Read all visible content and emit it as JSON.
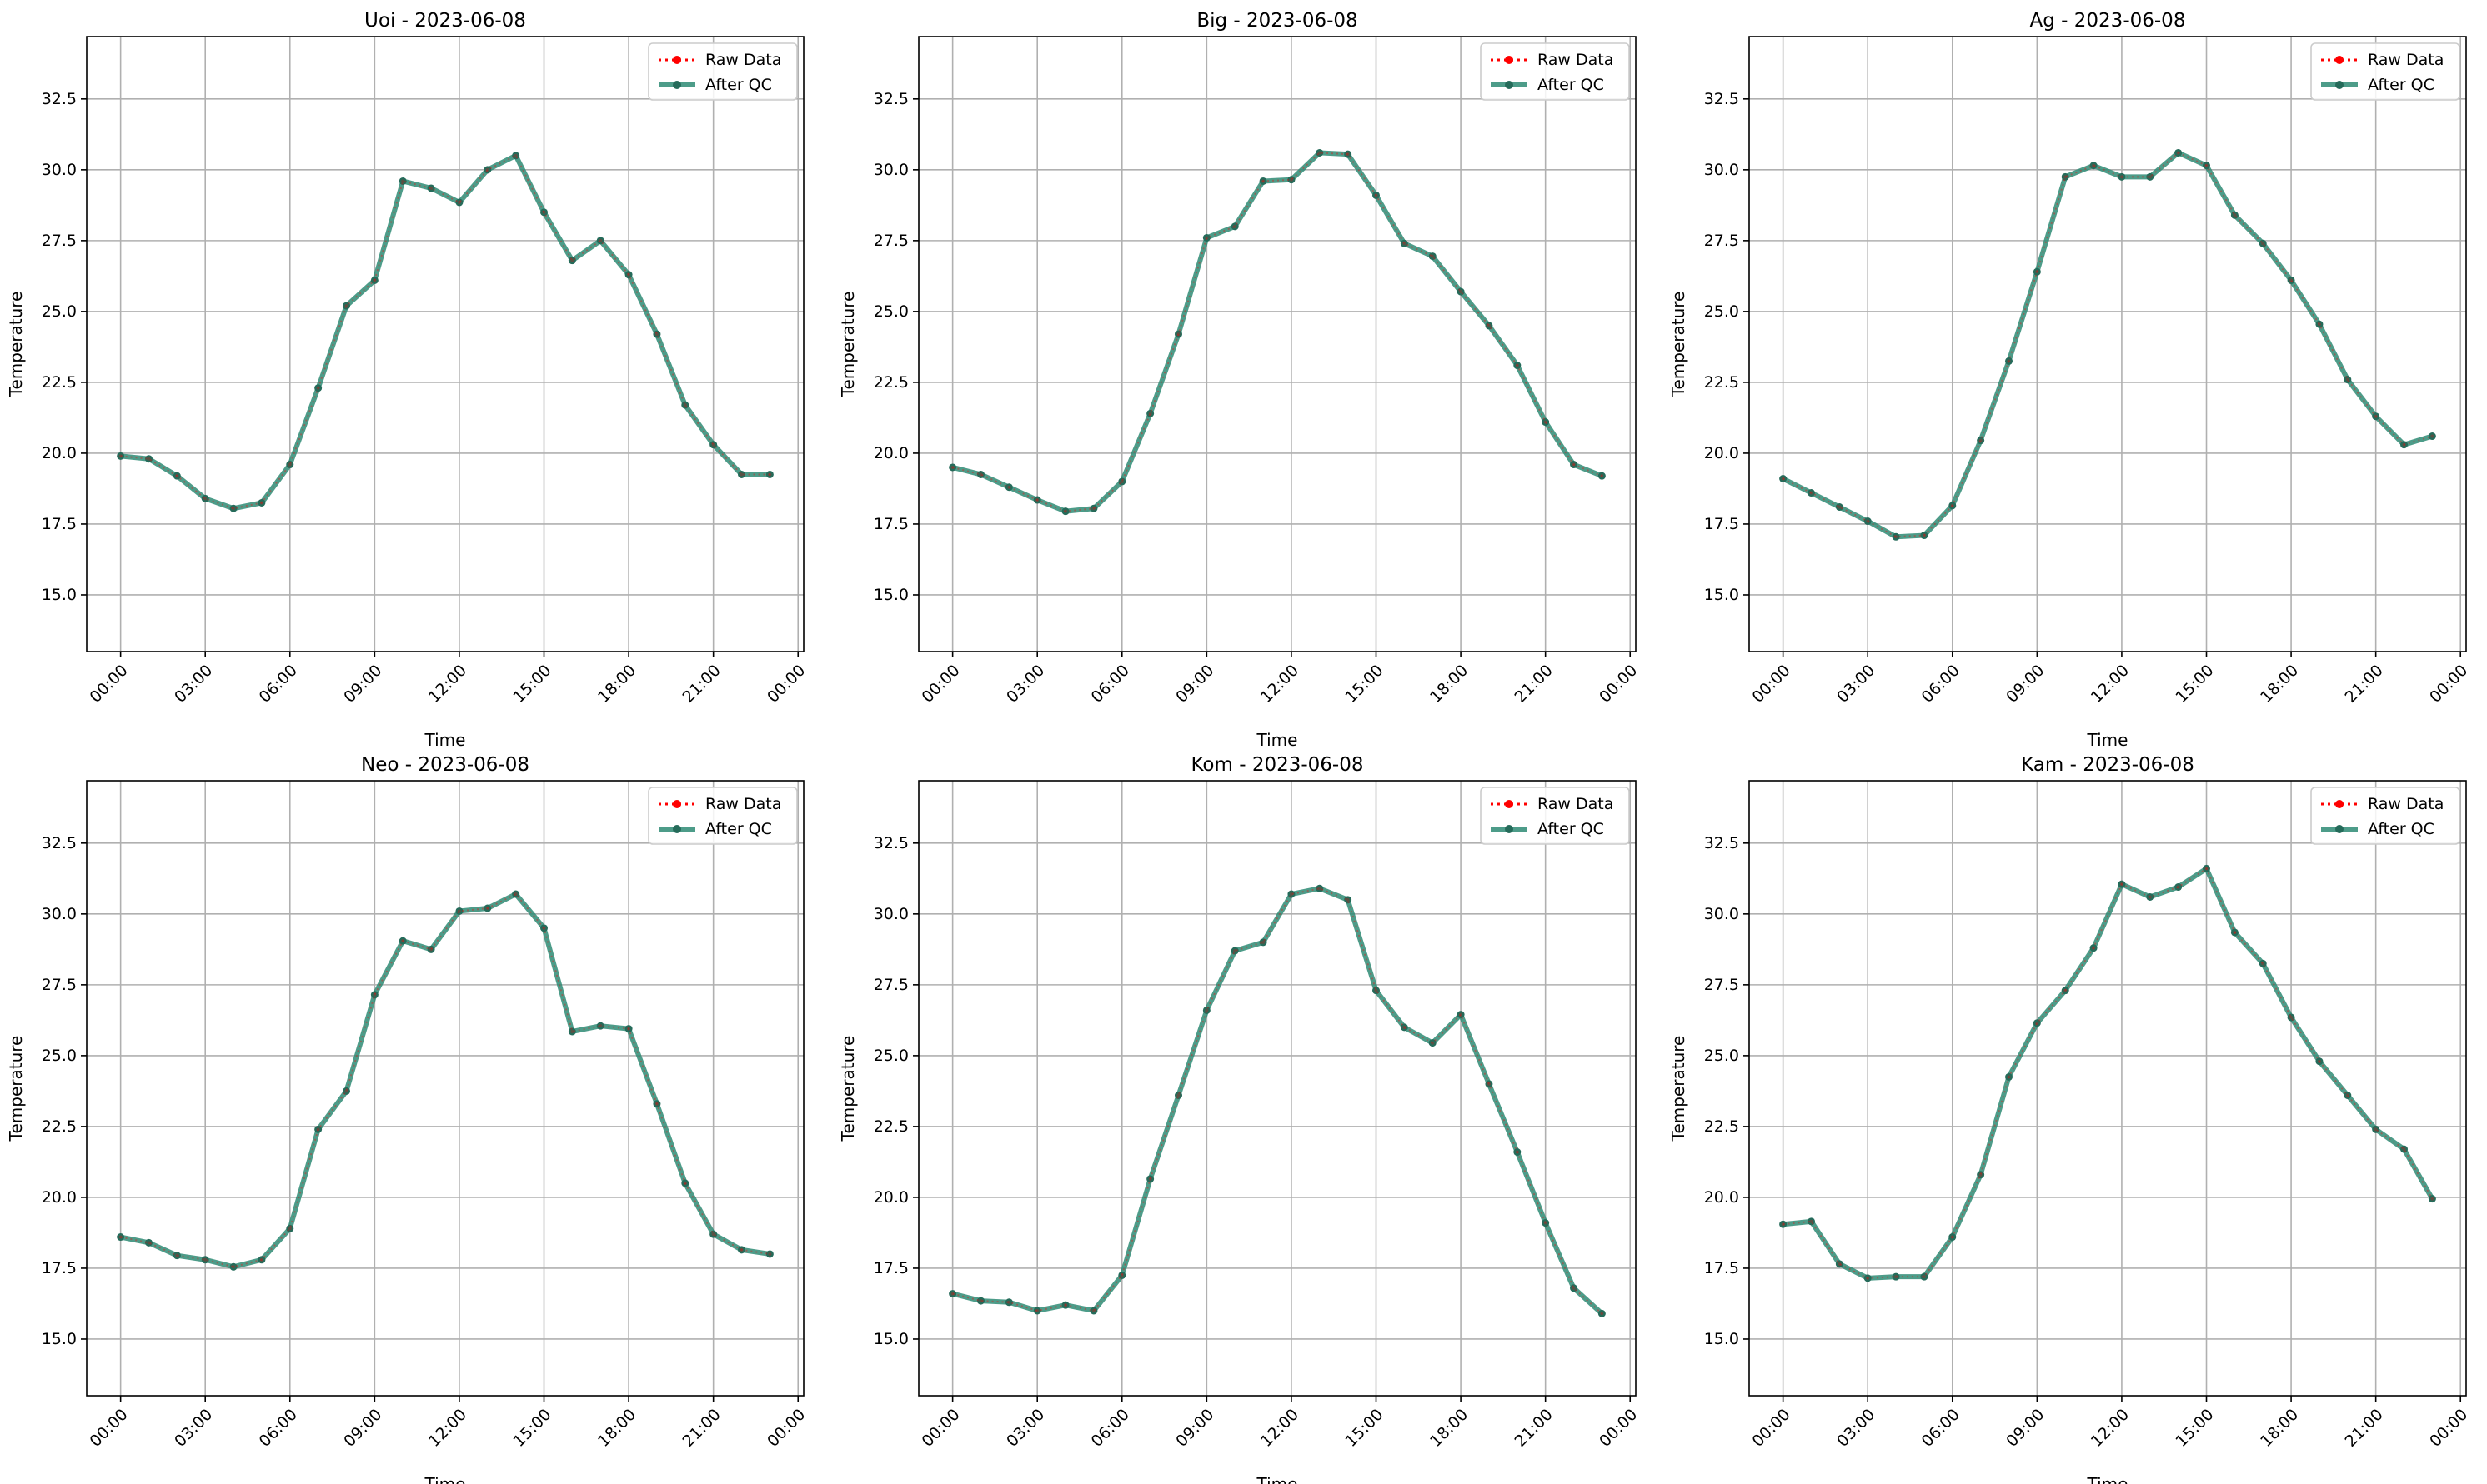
{
  "figure": {
    "date": "2023-06-08"
  },
  "legend": {
    "raw_label": "Raw Data",
    "qc_label": "After QC",
    "placement": "top-right"
  },
  "colors": {
    "raw": "#ff0000",
    "qc": "#2e8b74",
    "qc_marker": "#256b5a",
    "grid": "#b0b0b0"
  },
  "chart_data": [
    {
      "type": "line",
      "title": "Uoi - 2023-06-08",
      "xlabel": "Time",
      "ylabel": "Temperature",
      "xticks": [
        "00:00",
        "03:00",
        "06:00",
        "09:00",
        "12:00",
        "15:00",
        "18:00",
        "21:00",
        "00:00"
      ],
      "yticks": [
        "15.0",
        "17.5",
        "20.0",
        "22.5",
        "25.0",
        "27.5",
        "30.0",
        "32.5"
      ],
      "xlim_hours": [
        -1.2,
        24.2
      ],
      "ylim": [
        13.0,
        34.7
      ],
      "grid": true,
      "x_hours": [
        0,
        1,
        2,
        3,
        4,
        5,
        6,
        7,
        8,
        9,
        10,
        11,
        12,
        13,
        14,
        15,
        16,
        17,
        18,
        19,
        20,
        21,
        22,
        23
      ],
      "series": [
        {
          "name": "Raw Data",
          "values": [
            19.9,
            19.8,
            19.2,
            18.4,
            18.05,
            18.25,
            19.6,
            22.3,
            25.2,
            26.1,
            29.6,
            29.35,
            28.85,
            30.0,
            30.5,
            28.5,
            26.8,
            27.5,
            26.3,
            24.2,
            21.7,
            20.3,
            19.25,
            19.25
          ]
        },
        {
          "name": "After QC",
          "values": [
            19.9,
            19.8,
            19.2,
            18.4,
            18.05,
            18.25,
            19.6,
            22.3,
            25.2,
            26.1,
            29.6,
            29.35,
            28.85,
            30.0,
            30.5,
            28.5,
            26.8,
            27.5,
            26.3,
            24.2,
            21.7,
            20.3,
            19.25,
            19.25
          ]
        }
      ]
    },
    {
      "type": "line",
      "title": "Big - 2023-06-08",
      "xlabel": "Time",
      "ylabel": "Temperature",
      "xticks": [
        "00:00",
        "03:00",
        "06:00",
        "09:00",
        "12:00",
        "15:00",
        "18:00",
        "21:00",
        "00:00"
      ],
      "yticks": [
        "15.0",
        "17.5",
        "20.0",
        "22.5",
        "25.0",
        "27.5",
        "30.0",
        "32.5"
      ],
      "xlim_hours": [
        -1.2,
        24.2
      ],
      "ylim": [
        13.0,
        34.7
      ],
      "grid": true,
      "x_hours": [
        0,
        1,
        2,
        3,
        4,
        5,
        6,
        7,
        8,
        9,
        10,
        11,
        12,
        13,
        14,
        15,
        16,
        17,
        18,
        19,
        20,
        21,
        22,
        23
      ],
      "series": [
        {
          "name": "Raw Data",
          "values": [
            19.5,
            19.25,
            18.8,
            18.35,
            17.95,
            18.05,
            19.0,
            21.4,
            24.2,
            27.6,
            28.0,
            29.6,
            29.65,
            30.6,
            30.55,
            29.1,
            27.4,
            26.95,
            25.7,
            24.5,
            23.1,
            21.1,
            19.6,
            19.2
          ]
        },
        {
          "name": "After QC",
          "values": [
            19.5,
            19.25,
            18.8,
            18.35,
            17.95,
            18.05,
            19.0,
            21.4,
            24.2,
            27.6,
            28.0,
            29.6,
            29.65,
            30.6,
            30.55,
            29.1,
            27.4,
            26.95,
            25.7,
            24.5,
            23.1,
            21.1,
            19.6,
            19.2
          ]
        }
      ]
    },
    {
      "type": "line",
      "title": "Ag - 2023-06-08",
      "xlabel": "Time",
      "ylabel": "Temperature",
      "xticks": [
        "00:00",
        "03:00",
        "06:00",
        "09:00",
        "12:00",
        "15:00",
        "18:00",
        "21:00",
        "00:00"
      ],
      "yticks": [
        "15.0",
        "17.5",
        "20.0",
        "22.5",
        "25.0",
        "27.5",
        "30.0",
        "32.5"
      ],
      "xlim_hours": [
        -1.2,
        24.2
      ],
      "ylim": [
        13.0,
        34.7
      ],
      "grid": true,
      "x_hours": [
        0,
        1,
        2,
        3,
        4,
        5,
        6,
        7,
        8,
        9,
        10,
        11,
        12,
        13,
        14,
        15,
        16,
        17,
        18,
        19,
        20,
        21,
        22,
        23
      ],
      "series": [
        {
          "name": "Raw Data",
          "values": [
            19.1,
            18.6,
            18.1,
            17.6,
            17.05,
            17.1,
            18.15,
            20.45,
            23.25,
            26.4,
            29.75,
            30.15,
            29.75,
            29.75,
            30.6,
            30.15,
            28.4,
            27.4,
            26.1,
            24.55,
            22.6,
            21.3,
            20.3,
            20.6
          ]
        },
        {
          "name": "After QC",
          "values": [
            19.1,
            18.6,
            18.1,
            17.6,
            17.05,
            17.1,
            18.15,
            20.45,
            23.25,
            26.4,
            29.75,
            30.15,
            29.75,
            29.75,
            30.6,
            30.15,
            28.4,
            27.4,
            26.1,
            24.55,
            22.6,
            21.3,
            20.3,
            20.6
          ]
        }
      ]
    },
    {
      "type": "line",
      "title": "Neo - 2023-06-08",
      "xlabel": "Time",
      "ylabel": "Temperature",
      "xticks": [
        "00:00",
        "03:00",
        "06:00",
        "09:00",
        "12:00",
        "15:00",
        "18:00",
        "21:00",
        "00:00"
      ],
      "yticks": [
        "15.0",
        "17.5",
        "20.0",
        "22.5",
        "25.0",
        "27.5",
        "30.0",
        "32.5"
      ],
      "xlim_hours": [
        -1.2,
        24.2
      ],
      "ylim": [
        13.0,
        34.7
      ],
      "grid": true,
      "x_hours": [
        0,
        1,
        2,
        3,
        4,
        5,
        6,
        7,
        8,
        9,
        10,
        11,
        12,
        13,
        14,
        15,
        16,
        17,
        18,
        19,
        20,
        21,
        22,
        23
      ],
      "series": [
        {
          "name": "Raw Data",
          "values": [
            18.6,
            18.4,
            17.95,
            17.8,
            17.55,
            17.8,
            18.9,
            22.4,
            23.75,
            27.15,
            29.05,
            28.75,
            30.1,
            30.2,
            30.7,
            29.5,
            25.85,
            26.05,
            25.95,
            23.3,
            20.5,
            18.7,
            18.15,
            18.0
          ]
        },
        {
          "name": "After QC",
          "values": [
            18.6,
            18.4,
            17.95,
            17.8,
            17.55,
            17.8,
            18.9,
            22.4,
            23.75,
            27.15,
            29.05,
            28.75,
            30.1,
            30.2,
            30.7,
            29.5,
            25.85,
            26.05,
            25.95,
            23.3,
            20.5,
            18.7,
            18.15,
            18.0
          ]
        }
      ]
    },
    {
      "type": "line",
      "title": "Kom - 2023-06-08",
      "xlabel": "Time",
      "ylabel": "Temperature",
      "xticks": [
        "00:00",
        "03:00",
        "06:00",
        "09:00",
        "12:00",
        "15:00",
        "18:00",
        "21:00",
        "00:00"
      ],
      "yticks": [
        "15.0",
        "17.5",
        "20.0",
        "22.5",
        "25.0",
        "27.5",
        "30.0",
        "32.5"
      ],
      "xlim_hours": [
        -1.2,
        24.2
      ],
      "ylim": [
        13.0,
        34.7
      ],
      "grid": true,
      "x_hours": [
        0,
        1,
        2,
        3,
        4,
        5,
        6,
        7,
        8,
        9,
        10,
        11,
        12,
        13,
        14,
        15,
        16,
        17,
        18,
        19,
        20,
        21,
        22,
        23
      ],
      "series": [
        {
          "name": "Raw Data",
          "values": [
            16.6,
            16.35,
            16.3,
            16.0,
            16.2,
            16.0,
            17.25,
            20.65,
            23.6,
            26.6,
            28.7,
            29.0,
            30.7,
            30.9,
            30.5,
            27.3,
            26.0,
            25.45,
            26.45,
            24.0,
            21.6,
            19.1,
            16.8,
            15.9
          ]
        },
        {
          "name": "After QC",
          "values": [
            16.6,
            16.35,
            16.3,
            16.0,
            16.2,
            16.0,
            17.25,
            20.65,
            23.6,
            26.6,
            28.7,
            29.0,
            30.7,
            30.9,
            30.5,
            27.3,
            26.0,
            25.45,
            26.45,
            24.0,
            21.6,
            19.1,
            16.8,
            15.9
          ]
        }
      ]
    },
    {
      "type": "line",
      "title": "Kam - 2023-06-08",
      "xlabel": "Time",
      "ylabel": "Temperature",
      "xticks": [
        "00:00",
        "03:00",
        "06:00",
        "09:00",
        "12:00",
        "15:00",
        "18:00",
        "21:00",
        "00:00"
      ],
      "yticks": [
        "15.0",
        "17.5",
        "20.0",
        "22.5",
        "25.0",
        "27.5",
        "30.0",
        "32.5"
      ],
      "xlim_hours": [
        -1.2,
        24.2
      ],
      "ylim": [
        13.0,
        34.7
      ],
      "grid": true,
      "x_hours": [
        0,
        1,
        2,
        3,
        4,
        5,
        6,
        7,
        8,
        9,
        10,
        11,
        12,
        13,
        14,
        15,
        16,
        17,
        18,
        19,
        20,
        21,
        22,
        23
      ],
      "series": [
        {
          "name": "Raw Data",
          "values": [
            19.05,
            19.15,
            17.65,
            17.15,
            17.2,
            17.2,
            18.6,
            20.8,
            24.25,
            26.15,
            27.3,
            28.8,
            31.05,
            30.6,
            30.95,
            31.6,
            29.35,
            28.25,
            26.35,
            24.8,
            23.6,
            22.4,
            21.7,
            19.95
          ]
        },
        {
          "name": "After QC",
          "values": [
            19.05,
            19.15,
            17.65,
            17.15,
            17.2,
            17.2,
            18.6,
            20.8,
            24.25,
            26.15,
            27.3,
            28.8,
            31.05,
            30.6,
            30.95,
            31.6,
            29.35,
            28.25,
            26.35,
            24.8,
            23.6,
            22.4,
            21.7,
            19.95
          ]
        }
      ]
    }
  ]
}
